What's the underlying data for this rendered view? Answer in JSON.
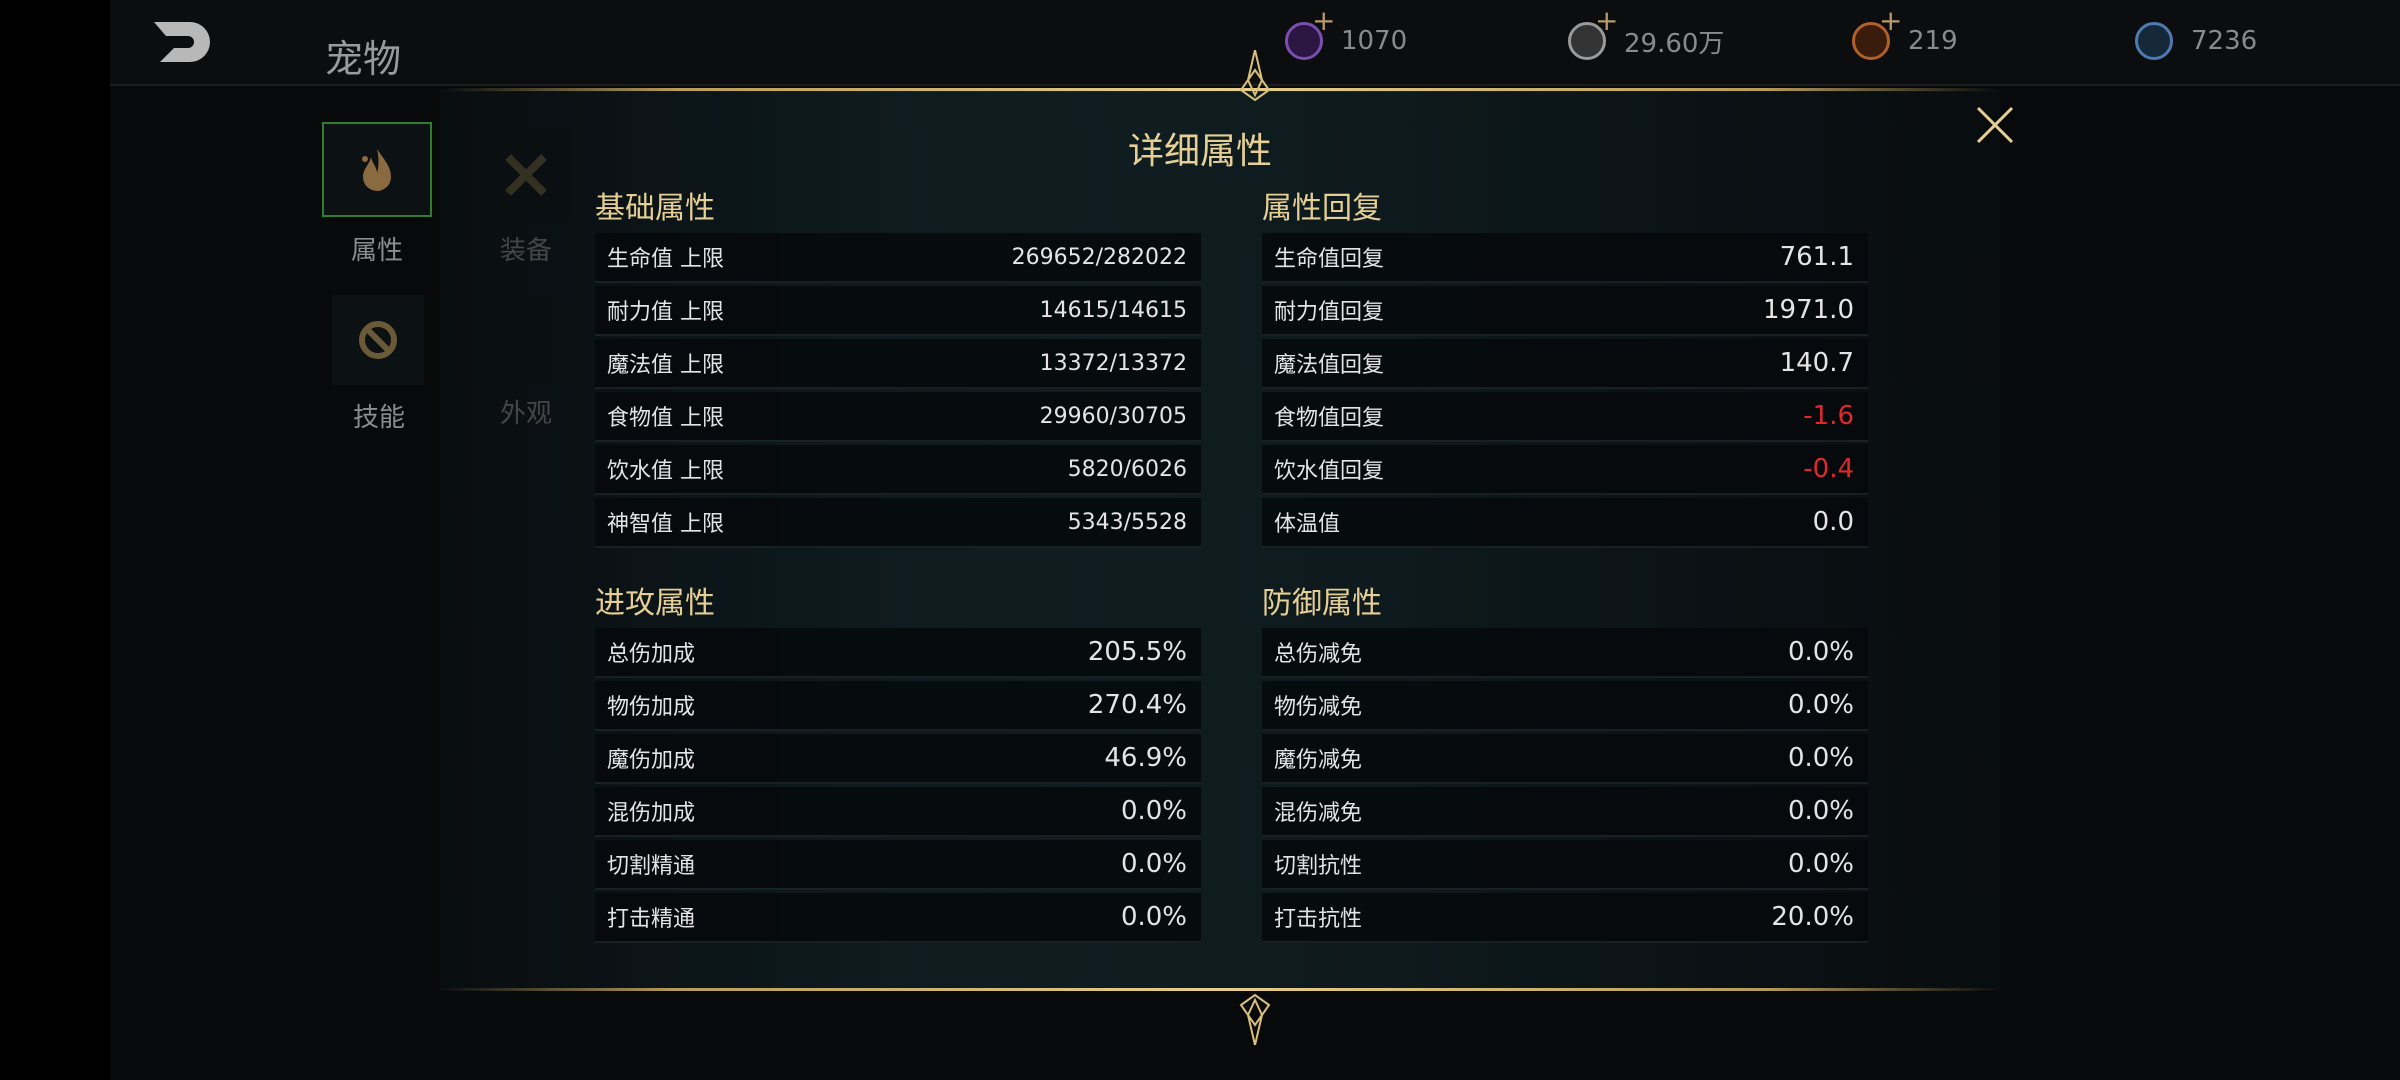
{
  "header": {
    "title": "宠物",
    "currencies": [
      {
        "icon": "purple-gem-icon",
        "value": "1070",
        "color": "#7a4fb0",
        "plus": true
      },
      {
        "icon": "silver-coin-icon",
        "value": "29.60万",
        "color": "#9a9a9a",
        "plus": true
      },
      {
        "icon": "bronze-coin-icon",
        "value": "219",
        "color": "#b0602a",
        "plus": true
      },
      {
        "icon": "blue-gem-icon",
        "value": "7236",
        "color": "#4f7ab0",
        "plus": false
      }
    ]
  },
  "sidebar": {
    "tabs": [
      {
        "label": "属性",
        "icon": "flame-icon",
        "selected": true
      },
      {
        "label": "装备",
        "icon": "crossed-swords-icon"
      },
      {
        "label": "技能",
        "icon": "skill-icon"
      },
      {
        "label": "外观",
        "icon": ""
      }
    ]
  },
  "modal": {
    "title": "详细属性",
    "sections": [
      {
        "title": "基础属性",
        "rows": [
          {
            "label": "生命值 上限",
            "value": "269652/282022"
          },
          {
            "label": "耐力值 上限",
            "value": "14615/14615"
          },
          {
            "label": "魔法值 上限",
            "value": "13372/13372"
          },
          {
            "label": "食物值 上限",
            "value": "29960/30705"
          },
          {
            "label": "饮水值 上限",
            "value": "5820/6026"
          },
          {
            "label": "神智值 上限",
            "value": "5343/5528"
          }
        ]
      },
      {
        "title": "属性回复",
        "rows": [
          {
            "label": "生命值回复",
            "value": "761.1"
          },
          {
            "label": "耐力值回复",
            "value": "1971.0"
          },
          {
            "label": "魔法值回复",
            "value": "140.7"
          },
          {
            "label": "食物值回复",
            "value": "-1.6",
            "negative": true
          },
          {
            "label": "饮水值回复",
            "value": "-0.4",
            "negative": true
          },
          {
            "label": "体温值",
            "value": "0.0"
          }
        ]
      },
      {
        "title": "进攻属性",
        "rows": [
          {
            "label": "总伤加成",
            "value": "205.5%"
          },
          {
            "label": "物伤加成",
            "value": "270.4%"
          },
          {
            "label": "魔伤加成",
            "value": "46.9%"
          },
          {
            "label": "混伤加成",
            "value": "0.0%"
          },
          {
            "label": "切割精通",
            "value": "0.0%"
          },
          {
            "label": "打击精通",
            "value": "0.0%"
          }
        ]
      },
      {
        "title": "防御属性",
        "rows": [
          {
            "label": "总伤减免",
            "value": "0.0%"
          },
          {
            "label": "物伤减免",
            "value": "0.0%"
          },
          {
            "label": "魔伤减免",
            "value": "0.0%"
          },
          {
            "label": "混伤减免",
            "value": "0.0%"
          },
          {
            "label": "切割抗性",
            "value": "0.0%"
          },
          {
            "label": "打击抗性",
            "value": "20.0%"
          }
        ]
      }
    ]
  },
  "colors": {
    "gold": "#e6cf94",
    "negative": "#e0282a",
    "selected_border": "#2f7d32"
  }
}
